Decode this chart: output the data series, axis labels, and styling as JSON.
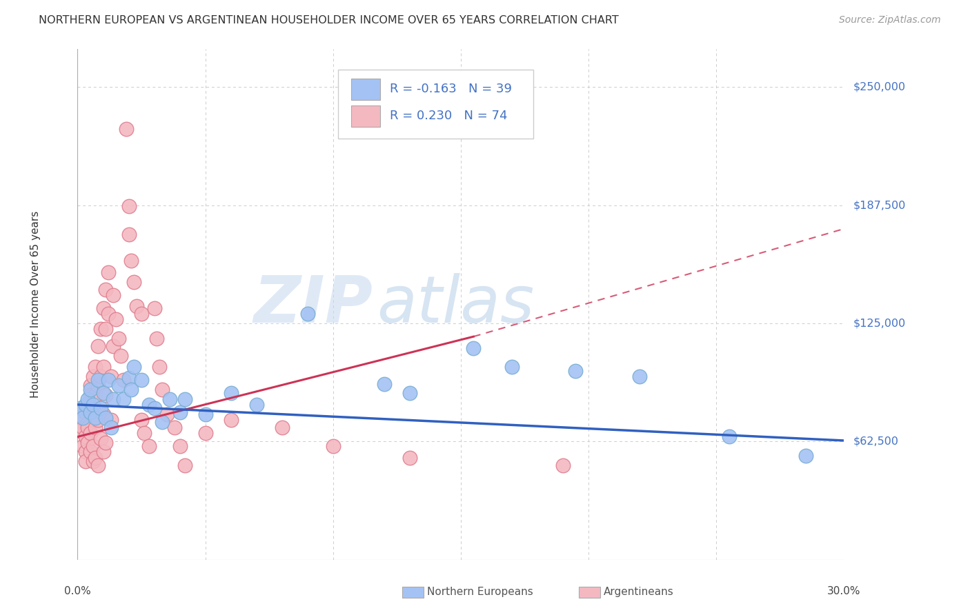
{
  "title": "NORTHERN EUROPEAN VS ARGENTINEAN HOUSEHOLDER INCOME OVER 65 YEARS CORRELATION CHART",
  "source": "Source: ZipAtlas.com",
  "ylabel": "Householder Income Over 65 years",
  "ylim": [
    0,
    270000
  ],
  "xlim": [
    0.0,
    0.3
  ],
  "yticks": [
    62500,
    125000,
    187500,
    250000
  ],
  "ytick_labels": [
    "$62,500",
    "$125,000",
    "$187,500",
    "$250,000"
  ],
  "grid_color": "#cccccc",
  "background_color": "#ffffff",
  "legend_blue_label": "Northern Europeans",
  "legend_pink_label": "Argentineans",
  "blue_R": "-0.163",
  "blue_N": "39",
  "pink_R": "0.230",
  "pink_N": "74",
  "blue_color": "#a4c2f4",
  "pink_color": "#f4b8c1",
  "blue_edge": "#7bafd4",
  "pink_edge": "#e08090",
  "blue_line_color": "#3060c0",
  "pink_line_color": "#cc3355",
  "right_label_color": "#4472c4",
  "legend_text_color": "#4472c4",
  "blue_points_x": [
    0.001,
    0.002,
    0.003,
    0.004,
    0.005,
    0.005,
    0.006,
    0.007,
    0.008,
    0.009,
    0.01,
    0.011,
    0.012,
    0.013,
    0.014,
    0.016,
    0.018,
    0.02,
    0.021,
    0.022,
    0.025,
    0.028,
    0.03,
    0.033,
    0.036,
    0.04,
    0.042,
    0.05,
    0.06,
    0.07,
    0.09,
    0.12,
    0.13,
    0.155,
    0.17,
    0.195,
    0.22,
    0.255,
    0.285
  ],
  "blue_points_y": [
    80000,
    75000,
    82000,
    85000,
    90000,
    78000,
    82000,
    75000,
    95000,
    80000,
    88000,
    75000,
    95000,
    70000,
    85000,
    92000,
    85000,
    96000,
    90000,
    102000,
    95000,
    82000,
    80000,
    73000,
    85000,
    78000,
    85000,
    77000,
    88000,
    82000,
    130000,
    93000,
    88000,
    112000,
    102000,
    100000,
    97000,
    65000,
    55000
  ],
  "pink_points_x": [
    0.001,
    0.001,
    0.002,
    0.002,
    0.002,
    0.003,
    0.003,
    0.003,
    0.003,
    0.004,
    0.004,
    0.004,
    0.004,
    0.005,
    0.005,
    0.005,
    0.005,
    0.006,
    0.006,
    0.006,
    0.006,
    0.007,
    0.007,
    0.007,
    0.007,
    0.008,
    0.008,
    0.008,
    0.008,
    0.009,
    0.009,
    0.009,
    0.01,
    0.01,
    0.01,
    0.01,
    0.011,
    0.011,
    0.011,
    0.011,
    0.012,
    0.012,
    0.013,
    0.013,
    0.014,
    0.014,
    0.015,
    0.016,
    0.017,
    0.018,
    0.019,
    0.02,
    0.02,
    0.021,
    0.022,
    0.023,
    0.025,
    0.025,
    0.026,
    0.028,
    0.03,
    0.031,
    0.032,
    0.033,
    0.035,
    0.038,
    0.04,
    0.042,
    0.05,
    0.06,
    0.08,
    0.1,
    0.13,
    0.19
  ],
  "pink_points_y": [
    68000,
    75000,
    70000,
    80000,
    60000,
    65000,
    78000,
    57000,
    52000,
    72000,
    82000,
    70000,
    62000,
    92000,
    87000,
    67000,
    57000,
    97000,
    77000,
    60000,
    52000,
    102000,
    87000,
    70000,
    54000,
    113000,
    92000,
    74000,
    50000,
    122000,
    97000,
    64000,
    133000,
    102000,
    77000,
    57000,
    143000,
    122000,
    87000,
    62000,
    152000,
    130000,
    97000,
    74000,
    140000,
    113000,
    127000,
    117000,
    108000,
    95000,
    228000,
    187000,
    172000,
    158000,
    147000,
    134000,
    130000,
    74000,
    67000,
    60000,
    133000,
    117000,
    102000,
    90000,
    77000,
    70000,
    60000,
    50000,
    67000,
    74000,
    70000,
    60000,
    54000,
    50000
  ],
  "blue_trend": [
    0.0,
    82000,
    0.3,
    63000
  ],
  "pink_solid": [
    0.0,
    65000,
    0.155,
    118000
  ],
  "pink_dashed": [
    0.155,
    118000,
    0.3,
    175000
  ]
}
